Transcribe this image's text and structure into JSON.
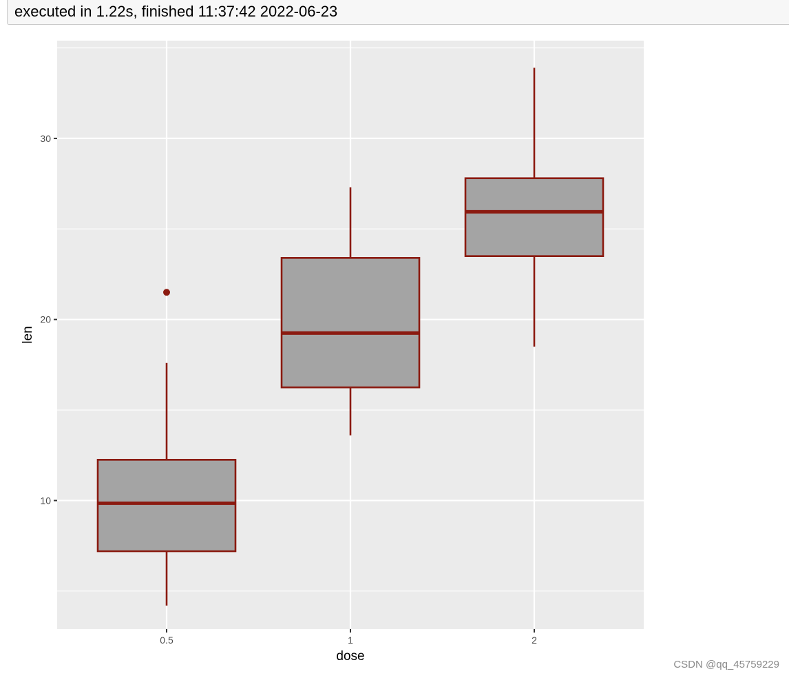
{
  "execution": {
    "status_text": "executed in 1.22s, finished 11:37:42 2022-06-23"
  },
  "watermark": "CSDN @qq_45759229",
  "colors": {
    "panel_background": "#ebebeb",
    "grid": "#ffffff",
    "box_fill": "#a4a4a4",
    "box_outline": "#8b1a10",
    "axis_text": "#4d4d4d",
    "axis_title": "#000000"
  },
  "chart_data": {
    "type": "boxplot",
    "title": "",
    "xlabel": "dose",
    "ylabel": "len",
    "categories": [
      "0.5",
      "1",
      "2"
    ],
    "ylim": [
      2.9,
      35.4
    ],
    "yticks": [
      10,
      20,
      30
    ],
    "ytick_labels": [
      "10",
      "20",
      "30"
    ],
    "grid": true,
    "legend": "none",
    "boxes": [
      {
        "category": "0.5",
        "whisker_low": 4.2,
        "q1": 7.2,
        "median": 9.85,
        "q3": 12.25,
        "whisker_high": 17.6,
        "outliers": [
          21.5
        ]
      },
      {
        "category": "1",
        "whisker_low": 13.6,
        "q1": 16.25,
        "median": 19.25,
        "q3": 23.4,
        "whisker_high": 27.3,
        "outliers": []
      },
      {
        "category": "2",
        "whisker_low": 18.5,
        "q1": 23.5,
        "median": 25.95,
        "q3": 27.8,
        "whisker_high": 33.9,
        "outliers": []
      }
    ]
  }
}
